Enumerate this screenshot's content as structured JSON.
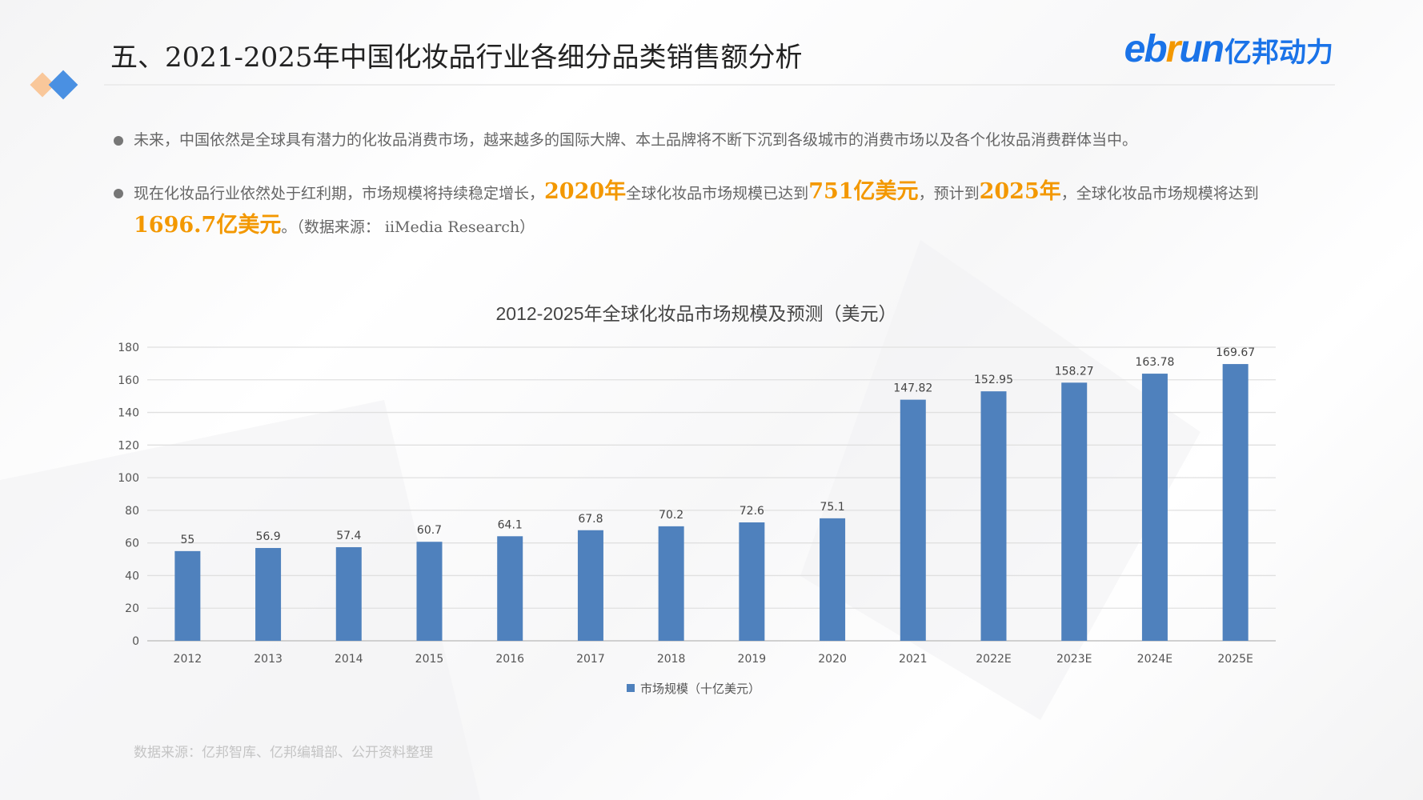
{
  "header": {
    "title": "五、2021-2025年中国化妆品行业各细分品类销售额分析",
    "logo": {
      "part1": "eb",
      "part2": "r",
      "part3": "un",
      "cn": "亿邦动力"
    }
  },
  "bullets": [
    {
      "text": "未来，中国依然是全球具有潜力的化妆品消费市场，越来越多的国际大牌、本土品牌将不断下沉到各级城市的消费市场以及各个化妆品消费群体当中。"
    },
    {
      "t1": "现在化妆品行业依然处于红利期，市场规模将持续稳定增长，",
      "h1": "2020年",
      "t2": "全球化妆品市场规模已达到",
      "h2": "751亿美元",
      "t3": "，预计到",
      "h3": "2025年",
      "t4": "，全球化妆品市场规模将达到",
      "h4": "1696.7亿美元",
      "t5": "。（数据来源： iiMedia Research）"
    }
  ],
  "colors": {
    "accent": "#f39800",
    "bar": "#4f81bd",
    "brand": "#1a73e8"
  },
  "chart_data": {
    "type": "bar",
    "title": "2012-2025年全球化妆品市场规模及预测（美元）",
    "categories": [
      "2012",
      "2013",
      "2014",
      "2015",
      "2016",
      "2017",
      "2018",
      "2019",
      "2020",
      "2021",
      "2022E",
      "2023E",
      "2024E",
      "2025E"
    ],
    "series": [
      {
        "name": "市场规模（十亿美元）",
        "values": [
          55,
          56.9,
          57.4,
          60.7,
          64.1,
          67.8,
          70.2,
          72.6,
          75.1,
          147.82,
          152.95,
          158.27,
          163.78,
          169.67
        ]
      }
    ],
    "value_labels": [
      "55",
      "56.9",
      "57.4",
      "60.7",
      "64.1",
      "67.8",
      "70.2",
      "72.6",
      "75.1",
      "147.82",
      "152.95",
      "158.27",
      "163.78",
      "169.67"
    ],
    "ylim": [
      0,
      180
    ],
    "yticks": [
      0,
      20,
      40,
      60,
      80,
      100,
      120,
      140,
      160,
      180
    ],
    "grid": true,
    "legend": "bottom"
  },
  "footer": {
    "source": "数据来源：亿邦智库、亿邦编辑部、公开资料整理"
  }
}
